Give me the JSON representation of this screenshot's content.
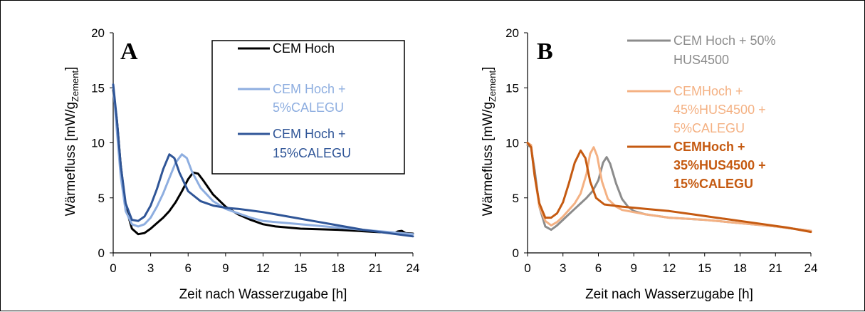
{
  "chart_data": [
    {
      "type": "line",
      "panel_label": "A",
      "xlabel": "Zeit nach Wasserzugabe [h]",
      "ylabel": "Wärmefluss [mW/g",
      "ylabel_sub": "Zement",
      "ylabel_end": "]",
      "xlim": [
        0,
        24
      ],
      "ylim": [
        0,
        20
      ],
      "xticks": [
        0,
        3,
        6,
        9,
        12,
        15,
        18,
        21,
        24
      ],
      "yticks": [
        0,
        5,
        10,
        15,
        20
      ],
      "grid": false,
      "legend_placement": "top-right",
      "series": [
        {
          "name_lines": [
            "CEM Hoch"
          ],
          "color": "#000000",
          "text_color": "#000000",
          "points": [
            [
              0,
              14.8
            ],
            [
              0.3,
              12
            ],
            [
              0.6,
              8
            ],
            [
              1,
              4.2
            ],
            [
              1.5,
              2.2
            ],
            [
              2,
              1.7
            ],
            [
              2.5,
              1.8
            ],
            [
              3,
              2.2
            ],
            [
              3.5,
              2.7
            ],
            [
              4,
              3.2
            ],
            [
              4.5,
              3.8
            ],
            [
              5,
              4.6
            ],
            [
              5.5,
              5.6
            ],
            [
              6,
              6.7
            ],
            [
              6.4,
              7.3
            ],
            [
              6.8,
              7.2
            ],
            [
              7.2,
              6.6
            ],
            [
              8,
              5.3
            ],
            [
              9,
              4.2
            ],
            [
              10,
              3.5
            ],
            [
              11,
              3.0
            ],
            [
              12,
              2.6
            ],
            [
              13,
              2.4
            ],
            [
              15,
              2.2
            ],
            [
              18,
              2.1
            ],
            [
              21,
              1.9
            ],
            [
              22,
              1.85
            ],
            [
              22.5,
              1.8
            ],
            [
              22.8,
              1.95
            ],
            [
              23.1,
              2.0
            ],
            [
              23.4,
              1.8
            ],
            [
              24,
              1.75
            ]
          ]
        },
        {
          "name_lines": [
            "CEM Hoch +",
            "5%CALEGU"
          ],
          "color": "#8eaee0",
          "text_color": "#8eaee0",
          "points": [
            [
              0,
              15.2
            ],
            [
              0.3,
              11
            ],
            [
              0.6,
              7
            ],
            [
              1,
              3.8
            ],
            [
              1.5,
              2.6
            ],
            [
              2,
              2.4
            ],
            [
              2.5,
              2.6
            ],
            [
              3,
              3.2
            ],
            [
              3.5,
              4.2
            ],
            [
              4,
              5.4
            ],
            [
              4.5,
              6.8
            ],
            [
              5,
              8.2
            ],
            [
              5.5,
              8.95
            ],
            [
              5.9,
              8.6
            ],
            [
              6.3,
              7.4
            ],
            [
              7,
              5.9
            ],
            [
              8,
              4.7
            ],
            [
              9,
              4.0
            ],
            [
              10,
              3.6
            ],
            [
              11,
              3.2
            ],
            [
              12,
              2.9
            ],
            [
              14,
              2.7
            ],
            [
              16,
              2.5
            ],
            [
              18,
              2.3
            ],
            [
              20,
              2.1
            ],
            [
              22,
              1.9
            ],
            [
              24,
              1.7
            ]
          ]
        },
        {
          "name_lines": [
            "CEM Hoch +",
            "15%CALEGU"
          ],
          "color": "#2f5597",
          "text_color": "#2f5597",
          "points": [
            [
              0,
              15.3
            ],
            [
              0.3,
              12
            ],
            [
              0.6,
              8
            ],
            [
              1,
              4.5
            ],
            [
              1.5,
              3.0
            ],
            [
              2,
              2.9
            ],
            [
              2.5,
              3.3
            ],
            [
              3,
              4.3
            ],
            [
              3.5,
              5.8
            ],
            [
              4,
              7.6
            ],
            [
              4.5,
              8.95
            ],
            [
              4.9,
              8.6
            ],
            [
              5.3,
              7.3
            ],
            [
              6,
              5.6
            ],
            [
              7,
              4.7
            ],
            [
              8,
              4.3
            ],
            [
              9,
              4.1
            ],
            [
              10,
              4.0
            ],
            [
              11,
              3.85
            ],
            [
              12,
              3.7
            ],
            [
              14,
              3.3
            ],
            [
              16,
              2.9
            ],
            [
              18,
              2.5
            ],
            [
              20,
              2.1
            ],
            [
              22,
              1.8
            ],
            [
              24,
              1.5
            ]
          ]
        }
      ]
    },
    {
      "type": "line",
      "panel_label": "B",
      "xlabel": "Zeit nach Wasserzugabe [h]",
      "ylabel": "Wärmefluss [mW/g",
      "ylabel_sub": "Zement",
      "ylabel_end": "]",
      "xlim": [
        0,
        24
      ],
      "ylim": [
        0,
        20
      ],
      "xticks": [
        0,
        3,
        6,
        9,
        12,
        15,
        18,
        21,
        24
      ],
      "yticks": [
        0,
        5,
        10,
        15,
        20
      ],
      "grid": false,
      "legend_placement": "top-right",
      "series": [
        {
          "name_lines": [
            "CEM Hoch + 50%",
            "HUS4500"
          ],
          "color": "#8c8c8c",
          "text_color": "#8c8c8c",
          "points": [
            [
              0,
              9.8
            ],
            [
              0.3,
              9.6
            ],
            [
              0.6,
              7.5
            ],
            [
              1,
              4.2
            ],
            [
              1.5,
              2.4
            ],
            [
              2,
              2.1
            ],
            [
              2.5,
              2.5
            ],
            [
              3,
              3.0
            ],
            [
              3.5,
              3.5
            ],
            [
              4,
              4.0
            ],
            [
              4.5,
              4.5
            ],
            [
              5,
              5.0
            ],
            [
              5.5,
              5.6
            ],
            [
              6,
              6.6
            ],
            [
              6.4,
              8.2
            ],
            [
              6.7,
              8.7
            ],
            [
              7,
              8.1
            ],
            [
              7.5,
              6.3
            ],
            [
              8,
              4.9
            ],
            [
              8.5,
              4.2
            ],
            [
              9,
              3.8
            ],
            [
              10,
              3.5
            ],
            [
              12,
              3.2
            ],
            [
              15,
              3.0
            ],
            [
              18,
              2.7
            ],
            [
              21,
              2.4
            ],
            [
              24,
              2.0
            ]
          ]
        },
        {
          "name_lines": [
            "CEMHoch +",
            "45%HUS4500 +",
            "5%CALEGU"
          ],
          "color": "#f4b183",
          "text_color": "#f4b183",
          "points": [
            [
              0,
              10
            ],
            [
              0.3,
              9.8
            ],
            [
              0.6,
              7
            ],
            [
              1,
              4.2
            ],
            [
              1.5,
              2.9
            ],
            [
              2,
              2.5
            ],
            [
              2.5,
              2.8
            ],
            [
              3,
              3.3
            ],
            [
              3.5,
              3.9
            ],
            [
              4,
              4.5
            ],
            [
              4.5,
              5.4
            ],
            [
              5,
              7.2
            ],
            [
              5.3,
              9.0
            ],
            [
              5.6,
              9.6
            ],
            [
              5.9,
              8.8
            ],
            [
              6.3,
              6.5
            ],
            [
              6.8,
              4.9
            ],
            [
              7.5,
              4.2
            ],
            [
              8,
              3.9
            ],
            [
              9,
              3.7
            ],
            [
              10,
              3.5
            ],
            [
              12,
              3.2
            ],
            [
              15,
              3.0
            ],
            [
              18,
              2.7
            ],
            [
              21,
              2.4
            ],
            [
              24,
              2.0
            ]
          ]
        },
        {
          "name_lines": [
            "CEMHoch +",
            "35%HUS4500 +",
            "15%CALEGU"
          ],
          "color": "#c55a11",
          "text_color": "#c55a11",
          "points": [
            [
              0,
              10
            ],
            [
              0.3,
              9.6
            ],
            [
              0.6,
              7
            ],
            [
              1,
              4.5
            ],
            [
              1.5,
              3.2
            ],
            [
              2,
              3.2
            ],
            [
              2.5,
              3.6
            ],
            [
              3,
              4.6
            ],
            [
              3.5,
              6.3
            ],
            [
              4,
              8.2
            ],
            [
              4.5,
              9.3
            ],
            [
              4.9,
              8.6
            ],
            [
              5.3,
              6.5
            ],
            [
              5.8,
              5.0
            ],
            [
              6.5,
              4.4
            ],
            [
              8,
              4.2
            ],
            [
              10,
              4.0
            ],
            [
              12,
              3.8
            ],
            [
              14,
              3.5
            ],
            [
              16,
              3.2
            ],
            [
              18,
              2.9
            ],
            [
              20,
              2.6
            ],
            [
              22,
              2.3
            ],
            [
              24,
              1.9
            ]
          ]
        }
      ]
    }
  ]
}
